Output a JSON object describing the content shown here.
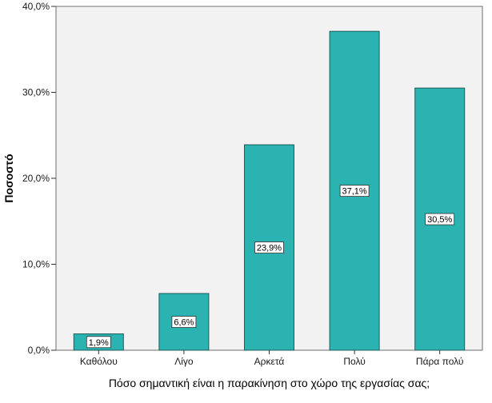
{
  "chart_data": {
    "type": "bar",
    "categories": [
      "Καθόλου",
      "Λίγο",
      "Αρκετά",
      "Πολύ",
      "Πάρα πολύ"
    ],
    "values": [
      1.9,
      6.6,
      23.9,
      37.1,
      30.5
    ],
    "data_labels": [
      "1,9%",
      "6,6%",
      "23,9%",
      "37,1%",
      "30,5%"
    ],
    "xlabel": "Πόσο σημαντική είναι η παρακίνηση στο χώρο της εργασίας σας;",
    "ylabel": "Ποσοστό",
    "ylim": [
      0,
      40
    ],
    "yticks": [
      0,
      10,
      20,
      30,
      40
    ],
    "ytick_labels": [
      "0,0%",
      "10,0%",
      "20,0%",
      "30,0%",
      "40,0%"
    ],
    "grid": false,
    "colors": {
      "bar_fill": "#2ab3b0",
      "bar_stroke": "#1f5b5a",
      "plot_background": "#f2f2f2",
      "frame": "#6e6e6e"
    }
  }
}
